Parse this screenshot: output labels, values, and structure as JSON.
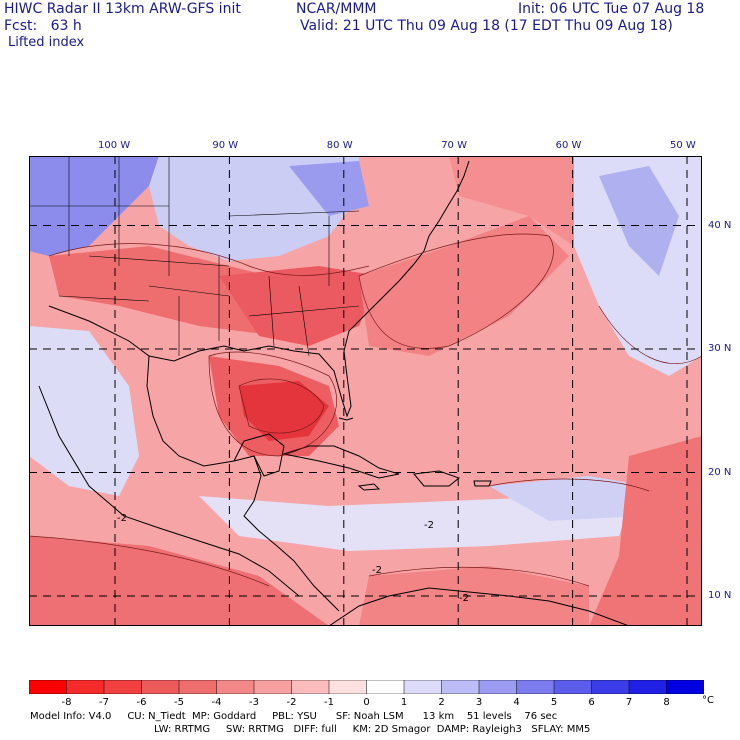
{
  "header": {
    "title": "HIWC Radar II 13km ARW-GFS init",
    "org": "NCAR/MMM",
    "init": "Init: 06 UTC Tue 07 Aug 18",
    "fcst": "Fcst:   63 h",
    "valid": "Valid: 21 UTC Thu 09 Aug 18 (17 EDT Thu 09 Aug 18)",
    "field": "Lifted index"
  },
  "map": {
    "lon_labels": [
      "100 W",
      "90 W",
      "80 W",
      "70 W",
      "60 W",
      "50 W"
    ],
    "lon_values": [
      -100,
      -90,
      -80,
      -70,
      -60,
      -50
    ],
    "lat_labels": [
      "40 N",
      "30 N",
      "20 N",
      "10 N"
    ],
    "lat_values": [
      40,
      30,
      20,
      10
    ],
    "contour_labels": [
      "-2",
      "-2",
      "-2",
      "-2"
    ],
    "colors": {
      "strong_neg": "#e8303a",
      "mid_neg": "#f07075",
      "weak_neg": "#f8b0b2",
      "neutral": "#f4f0f8",
      "weak_pos": "#c8c8f4",
      "mid_pos": "#8c8cec"
    }
  },
  "colorbar": {
    "unit": "°C",
    "tick_labels": [
      "-8",
      "-7",
      "-6",
      "-5",
      "-4",
      "-3",
      "-2",
      "-1",
      "0",
      "1",
      "2",
      "3",
      "4",
      "5",
      "6",
      "7",
      "8"
    ],
    "colors": [
      "#ff0000",
      "#f52a2a",
      "#f04040",
      "#ec5a5a",
      "#ee6e6e",
      "#f28888",
      "#f6a0a0",
      "#fabcbc",
      "#fde0e0",
      "#ffffff",
      "#dcdcfa",
      "#bcbcf6",
      "#9c9cf2",
      "#7c7cee",
      "#5c5cec",
      "#3c3ce8",
      "#2020e4",
      "#0000e0"
    ]
  },
  "model_info": {
    "line1": "Model Info: V4.0     CU: N_Tiedt  MP: Goddard     PBL: YSU      SF: Noah LSM      13 km    51 levels    76 sec",
    "line2": "LW: RRTMG     SW: RRTMG   DIFF: full     KM: 2D Smagor  DAMP: Rayleigh3   SFLAY: MM5"
  }
}
